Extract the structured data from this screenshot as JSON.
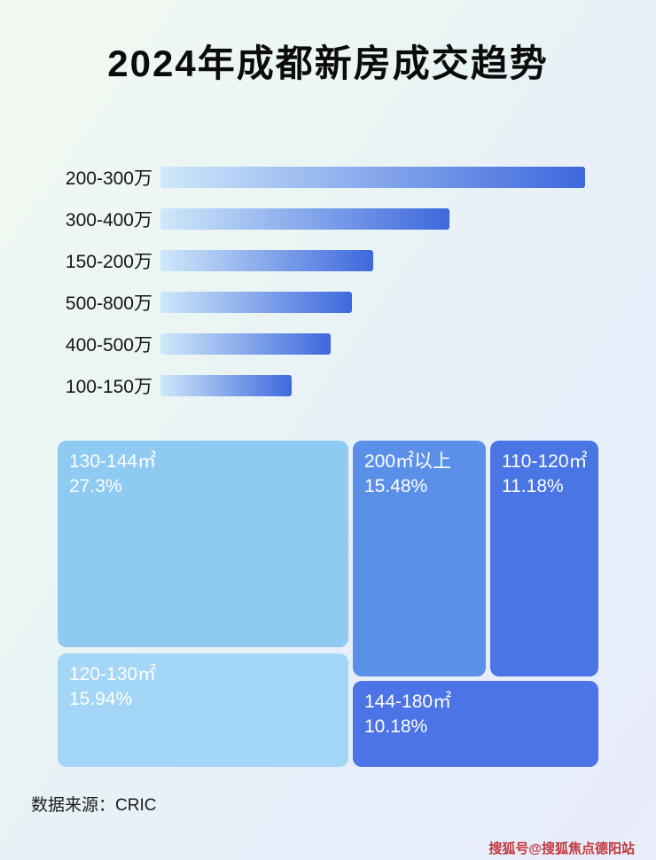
{
  "header": {
    "title": "2024年成都新房成交趋势"
  },
  "footer": {
    "source": "数据来源：CRIC",
    "watermark": "搜狐号@搜狐焦点德阳站",
    "watermark_color": "#c2383c"
  },
  "chart_data": [
    {
      "type": "bar",
      "orientation": "horizontal",
      "title": "2024年成都新房成交趋势",
      "categories": [
        "200-300万",
        "300-400万",
        "150-200万",
        "500-800万",
        "400-500万",
        "100-150万"
      ],
      "values_pct_of_max": [
        100,
        68,
        50,
        45,
        40,
        31
      ],
      "value_axis_shown": false,
      "data_labels_shown": false,
      "bar_gradient": [
        "#cfe8fa",
        "#3e68dd"
      ],
      "legend": "none",
      "grid": false
    },
    {
      "type": "treemap",
      "items": [
        {
          "label": "130-144㎡",
          "value_pct": 27.3,
          "display": "27.3%",
          "color": "#8fcaf3"
        },
        {
          "label": "120-130㎡",
          "value_pct": 15.94,
          "display": "15.94%",
          "color": "#a4d6f7"
        },
        {
          "label": "200㎡以上",
          "value_pct": 15.48,
          "display": "15.48%",
          "color": "#5b90e8"
        },
        {
          "label": "110-120㎡",
          "value_pct": 11.18,
          "display": "11.18%",
          "color": "#4a75e4"
        },
        {
          "label": "144-180㎡",
          "value_pct": 10.18,
          "display": "10.18%",
          "color": "#4d74e6"
        }
      ]
    }
  ]
}
